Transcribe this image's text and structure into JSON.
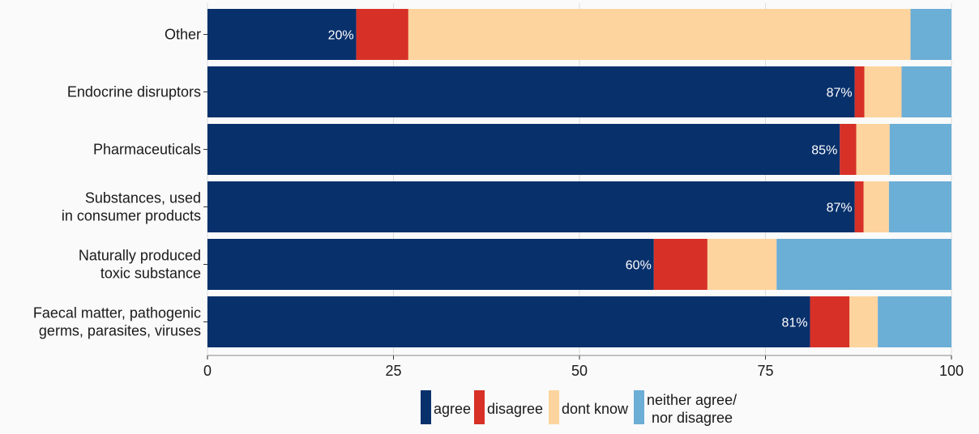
{
  "chart_data": {
    "type": "bar",
    "orientation": "horizontal",
    "stacked": true,
    "categories": [
      "Other",
      "Endocrine disruptors",
      "Pharmaceuticals",
      "Substances, used\nin consumer products",
      "Naturally produced\ntoxic substance",
      "Faecal matter, pathogenic\ngerms, parasites, viruses"
    ],
    "series": [
      {
        "name": "agree",
        "color": "#08306b",
        "values": [
          20,
          87,
          85,
          87,
          60,
          81
        ]
      },
      {
        "name": "disagree",
        "color": "#d73027",
        "values": [
          7,
          1.3,
          2.2,
          1.2,
          7.2,
          5.3
        ]
      },
      {
        "name": "dont know",
        "color": "#fdd49e",
        "values": [
          67.5,
          5,
          4.5,
          3.4,
          9.3,
          3.8
        ]
      },
      {
        "name": "neither agree/\nnor disagree",
        "color": "#6baed6",
        "values": [
          5.5,
          6.7,
          8.3,
          8.4,
          23.5,
          9.9
        ]
      }
    ],
    "data_labels": [
      "20%",
      "87%",
      "85%",
      "87%",
      "60%",
      "81%"
    ],
    "xticks": [
      0,
      25,
      50,
      75,
      100
    ],
    "xlim": [
      0,
      100
    ],
    "grid": true,
    "legend_position": "bottom",
    "title": "",
    "xlabel": "",
    "ylabel": ""
  }
}
